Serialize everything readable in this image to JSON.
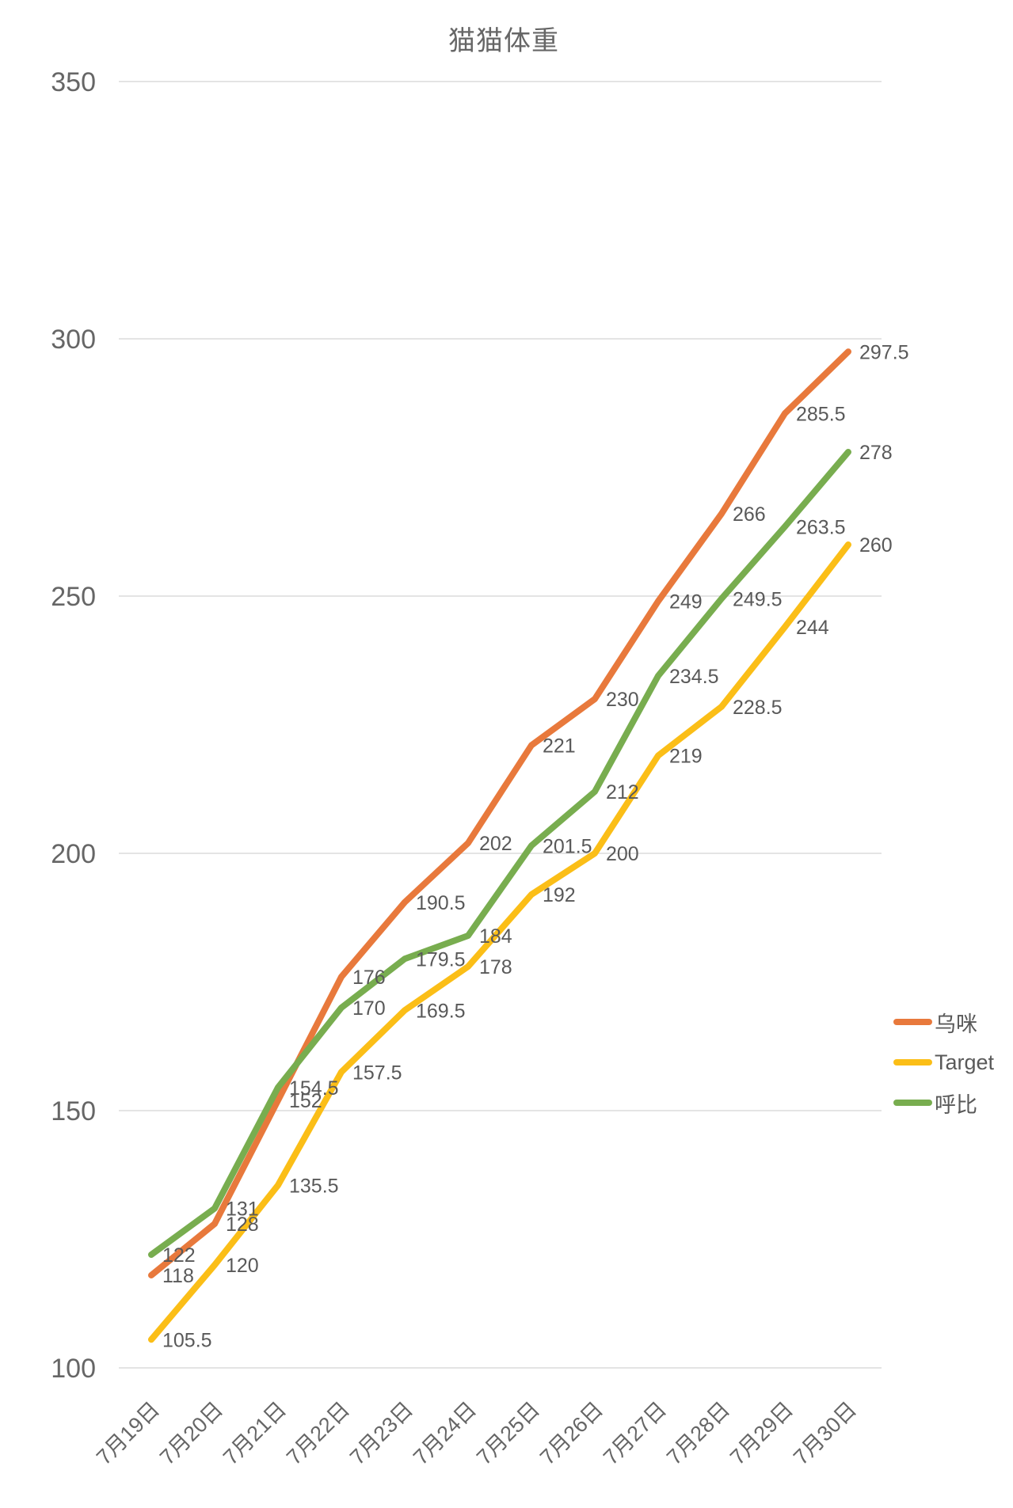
{
  "chart_data": {
    "type": "line",
    "title": "猫猫体重",
    "categories": [
      "7月19日",
      "7月20日",
      "7月21日",
      "7月22日",
      "7月23日",
      "7月24日",
      "7月25日",
      "7月26日",
      "7月27日",
      "7月28日",
      "7月29日",
      "7月30日"
    ],
    "series": [
      {
        "name": "乌咪",
        "color": "#E8793C",
        "values": [
          118,
          128,
          152,
          176,
          190.5,
          202,
          221,
          230,
          249,
          266,
          285.5,
          297.5
        ]
      },
      {
        "name": "Target",
        "color": "#FBBE17",
        "values": [
          105.5,
          120,
          135.5,
          157.5,
          169.5,
          178,
          192,
          200,
          219,
          228.5,
          244,
          260
        ]
      },
      {
        "name": "呼比",
        "color": "#78AD4F",
        "values": [
          122,
          131,
          154.5,
          170,
          179.5,
          184,
          201.5,
          212,
          234.5,
          249.5,
          263.5,
          278
        ]
      }
    ],
    "ylim": [
      100,
      350
    ],
    "y_ticks": [
      350,
      300,
      250,
      200,
      150,
      100
    ],
    "grid": true,
    "legend_position": "right",
    "data_labels": true
  },
  "colors": {
    "grid": "#DBDBDB",
    "axis_text": "#666666",
    "data_label_text": "#595959",
    "title_text": "#666666"
  }
}
